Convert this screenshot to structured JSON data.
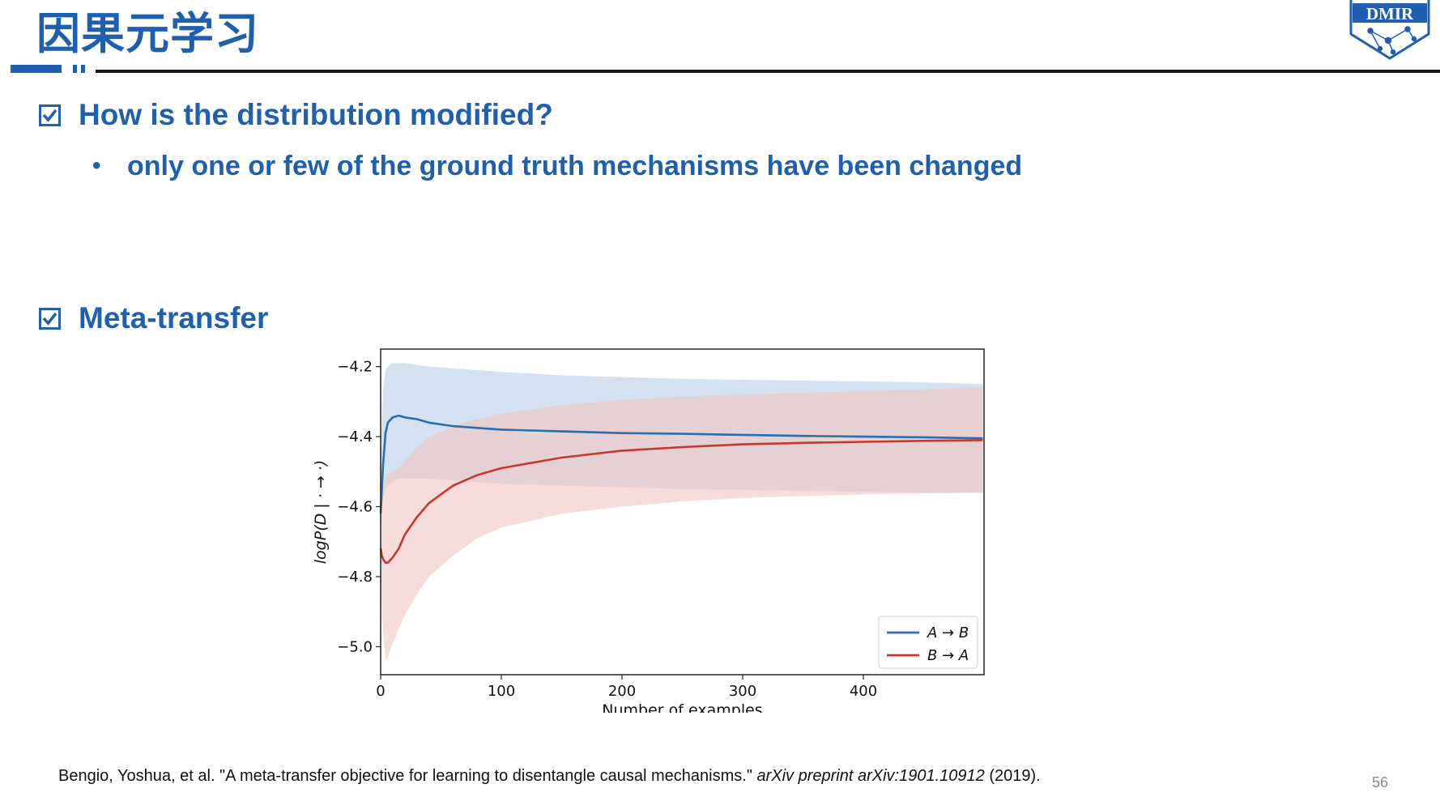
{
  "slide": {
    "title": "因果元学习",
    "logo_text": "DMIR",
    "page_number": "56",
    "brand_color": "#1f5fb0"
  },
  "sections": [
    {
      "heading": "How is the distribution modified?",
      "icon": "checkbox-checked-icon",
      "bullets": [
        "only one or few of the ground truth mechanisms have been changed"
      ]
    },
    {
      "heading": "Meta-transfer",
      "icon": "checkbox-checked-icon"
    }
  ],
  "citation": {
    "text_main": "Bengio, Yoshua, et al. \"A meta-transfer objective for learning to disentangle causal mechanisms.\" ",
    "text_italic": "arXiv preprint arXiv:1901.10912",
    "text_year": " (2019)."
  },
  "chart_data": {
    "type": "line",
    "title": "",
    "ylabel": "logP(D | · → ·)",
    "xlabel": "Number of examples",
    "xlim": [
      0,
      500
    ],
    "ylim": [
      -5.08,
      -4.15
    ],
    "xticks": [
      0,
      100,
      200,
      300,
      400
    ],
    "yticks": [
      -4.2,
      -4.4,
      -4.6,
      -4.8,
      -5.0
    ],
    "ytick_labels": [
      "−4.2",
      "−4.4",
      "−4.6",
      "−4.8",
      "−5.0"
    ],
    "legend_position": "lower-right",
    "grid": false,
    "series": [
      {
        "name": "A → B",
        "color": "#2a6db0",
        "band_color": "#b8cfe6",
        "x": [
          0,
          1,
          2,
          4,
          6,
          10,
          15,
          20,
          30,
          40,
          60,
          80,
          100,
          150,
          200,
          250,
          300,
          350,
          400,
          450,
          499
        ],
        "mean": [
          -4.62,
          -4.55,
          -4.48,
          -4.39,
          -4.36,
          -4.345,
          -4.34,
          -4.345,
          -4.35,
          -4.36,
          -4.37,
          -4.375,
          -4.38,
          -4.385,
          -4.39,
          -4.392,
          -4.395,
          -4.398,
          -4.4,
          -4.402,
          -4.405
        ],
        "upper": [
          -4.5,
          -4.35,
          -4.27,
          -4.21,
          -4.2,
          -4.19,
          -4.19,
          -4.19,
          -4.195,
          -4.2,
          -4.205,
          -4.21,
          -4.215,
          -4.225,
          -4.23,
          -4.235,
          -4.238,
          -4.24,
          -4.242,
          -4.245,
          -4.25
        ],
        "lower": [
          -4.7,
          -4.62,
          -4.58,
          -4.55,
          -4.54,
          -4.53,
          -4.52,
          -4.52,
          -4.52,
          -4.52,
          -4.525,
          -4.53,
          -4.535,
          -4.54,
          -4.545,
          -4.55,
          -4.552,
          -4.555,
          -4.558,
          -4.56,
          -4.56
        ]
      },
      {
        "name": "B → A",
        "color": "#c8372d",
        "band_color": "#f0c6c3",
        "x": [
          0,
          1,
          2,
          4,
          6,
          10,
          15,
          20,
          30,
          40,
          60,
          80,
          100,
          150,
          200,
          250,
          300,
          350,
          400,
          450,
          499
        ],
        "mean": [
          -4.72,
          -4.74,
          -4.75,
          -4.76,
          -4.76,
          -4.745,
          -4.72,
          -4.68,
          -4.63,
          -4.59,
          -4.54,
          -4.51,
          -4.49,
          -4.46,
          -4.44,
          -4.43,
          -4.422,
          -4.418,
          -4.415,
          -4.412,
          -4.41
        ],
        "upper": [
          -4.62,
          -4.58,
          -4.55,
          -4.52,
          -4.51,
          -4.5,
          -4.49,
          -4.47,
          -4.43,
          -4.4,
          -4.37,
          -4.35,
          -4.335,
          -4.31,
          -4.295,
          -4.285,
          -4.28,
          -4.275,
          -4.27,
          -4.265,
          -4.26
        ],
        "lower": [
          -4.82,
          -4.9,
          -4.96,
          -5.04,
          -5.03,
          -4.99,
          -4.95,
          -4.91,
          -4.85,
          -4.8,
          -4.74,
          -4.69,
          -4.66,
          -4.62,
          -4.6,
          -4.585,
          -4.575,
          -4.57,
          -4.565,
          -4.562,
          -4.56
        ]
      }
    ]
  }
}
